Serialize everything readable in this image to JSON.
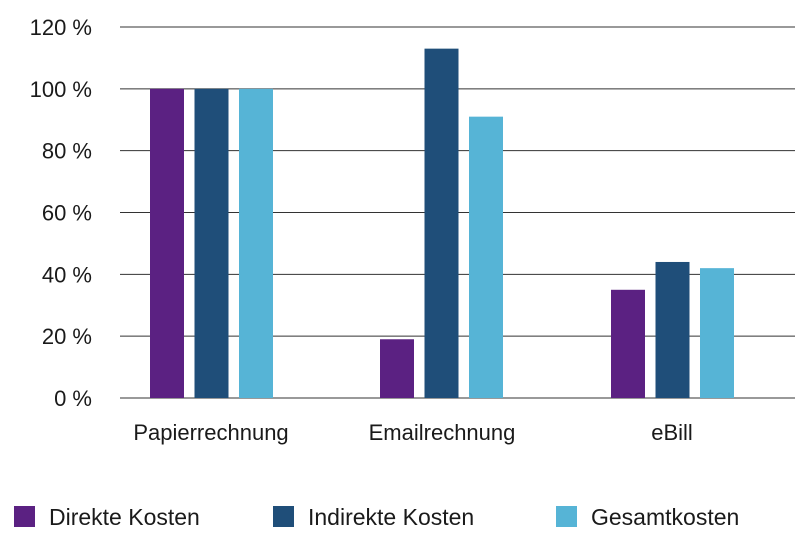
{
  "chart_data": {
    "type": "bar",
    "categories": [
      "Papierrechnung",
      "Emailrechnung",
      "eBill"
    ],
    "series": [
      {
        "name": "Direkte Kosten",
        "color": "#5b2182",
        "values": [
          100,
          19,
          35
        ]
      },
      {
        "name": "Indirekte Kosten",
        "color": "#1f4e79",
        "values": [
          100,
          113,
          44
        ]
      },
      {
        "name": "Gesamtkosten",
        "color": "#56b4d6",
        "values": [
          100,
          91,
          42
        ]
      }
    ],
    "ylim": [
      0,
      120
    ],
    "yticks": [
      0,
      20,
      40,
      60,
      80,
      100,
      120
    ],
    "ytick_labels": [
      "0 %",
      "20 %",
      "40 %",
      "60 %",
      "80 %",
      "100 %",
      "120 %"
    ],
    "grid": true,
    "legend_position": "bottom"
  }
}
